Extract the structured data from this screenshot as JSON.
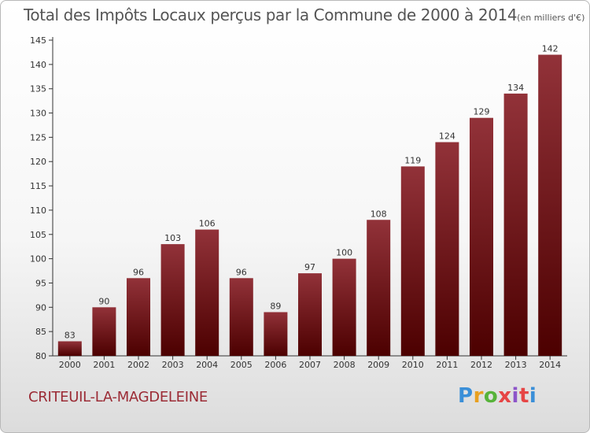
{
  "title": "Total des Impôts Locaux perçus par la Commune de 2000 à 2014",
  "title_unit": "(en milliers d'€)",
  "commune": "CRITEUIL-LA-MAGDELEINE",
  "logo": {
    "text": "Proxiti",
    "letter_colors": [
      "#3a8fd8",
      "#e8a020",
      "#57b33a",
      "#e64545",
      "#8d55c9",
      "#e64545"
    ]
  },
  "colors": {
    "bar_light": "#923239",
    "bar_dark": "#4c0000",
    "axis": "#333333",
    "commune": "#9b2b35"
  },
  "chart_data": {
    "type": "bar",
    "categories": [
      "2000",
      "2001",
      "2002",
      "2003",
      "2004",
      "2005",
      "2006",
      "2007",
      "2008",
      "2009",
      "2010",
      "2011",
      "2012",
      "2013",
      "2014"
    ],
    "values": [
      83,
      90,
      96,
      103,
      106,
      96,
      89,
      97,
      100,
      108,
      119,
      124,
      129,
      134,
      142
    ],
    "ylim": [
      80,
      145
    ],
    "yticks": [
      80,
      85,
      90,
      95,
      100,
      105,
      110,
      115,
      120,
      125,
      130,
      135,
      140,
      145
    ],
    "grid": false,
    "legend": "none"
  }
}
